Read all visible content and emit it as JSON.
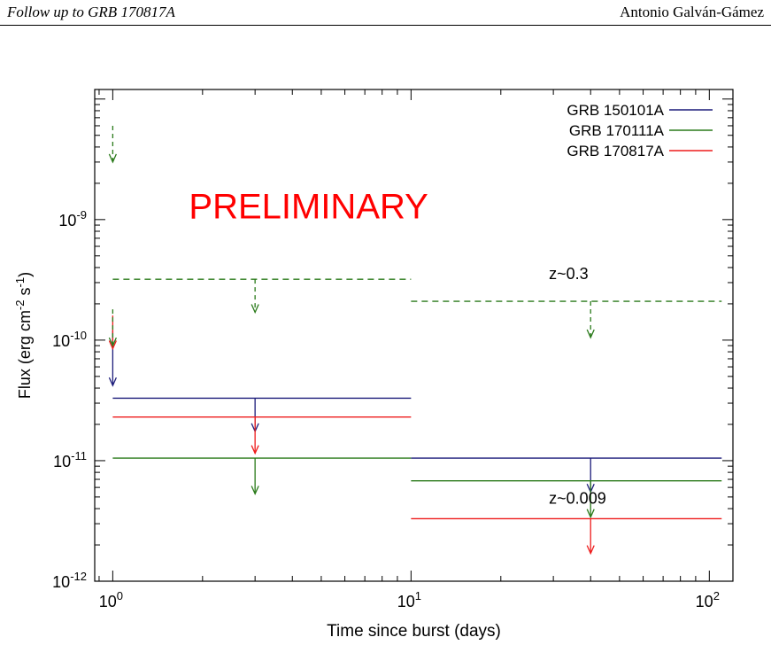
{
  "header": {
    "left_text": "Follow up to GRB 170817A",
    "right_text": "Antonio Galván-Gámez"
  },
  "chart_data": {
    "type": "line",
    "title": "",
    "xlabel": "Time since burst (days)",
    "ylabel": "Flux (erg cm-2 s-1)",
    "x_scale": "log",
    "y_scale": "log",
    "xlim": [
      0.87,
      120
    ],
    "ylim": [
      1e-12,
      1.2e-08
    ],
    "grid": false,
    "legend_position": "top-right",
    "x_ticks": [
      {
        "value": 1,
        "base": "10",
        "exp": "0"
      },
      {
        "value": 10,
        "base": "10",
        "exp": "1"
      },
      {
        "value": 100,
        "base": "10",
        "exp": "2"
      }
    ],
    "y_ticks": [
      {
        "value": 1e-12,
        "base": "10",
        "exp": "-12"
      },
      {
        "value": 1e-11,
        "base": "10",
        "exp": "-11"
      },
      {
        "value": 1e-10,
        "base": "10",
        "exp": "-10"
      },
      {
        "value": 1e-09,
        "base": "10",
        "exp": "-9"
      }
    ],
    "series": [
      {
        "name": "GRB 150101A",
        "color": "#1c1c7a",
        "dashed": false,
        "upper_limits": [
          {
            "x_from": 1,
            "x_to": 1,
            "x_arrow": 1,
            "y": 1.2e-10,
            "y_arrow_end": 4.2e-11
          },
          {
            "x_from": 1,
            "x_to": 10,
            "x_arrow": 3,
            "y": 3.3e-11,
            "y_arrow_end": 1.75e-11
          },
          {
            "x_from": 10,
            "x_to": 110,
            "x_arrow": 40,
            "y": 1.05e-11,
            "y_arrow_end": 5.5e-12
          }
        ]
      },
      {
        "name": "GRB 170111A",
        "color": "#2a7a1a",
        "dashed": false,
        "upper_limits": [
          {
            "x_from": 1,
            "x_to": 10,
            "x_arrow": 3,
            "y": 1.05e-11,
            "y_arrow_end": 5.3e-12
          },
          {
            "x_from": 10,
            "x_to": 110,
            "x_arrow": 40,
            "y": 6.8e-12,
            "y_arrow_end": 3.4e-12
          }
        ]
      },
      {
        "name": "GRB 170817A",
        "color": "#ee1c1c",
        "dashed": false,
        "upper_limits": [
          {
            "x_from": 1,
            "x_to": 1,
            "x_arrow": 1,
            "y": 1.6e-10,
            "y_arrow_end": 8.5e-11
          },
          {
            "x_from": 1,
            "x_to": 10,
            "x_arrow": 3,
            "y": 2.3e-11,
            "y_arrow_end": 1.15e-11
          },
          {
            "x_from": 10,
            "x_to": 110,
            "x_arrow": 40,
            "y": 3.3e-12,
            "y_arrow_end": 1.7e-12
          }
        ]
      },
      {
        "color": "#2a7a1a",
        "dashed": true,
        "upper_limits": [
          {
            "x_from": 1,
            "x_to": 1,
            "x_arrow": 1,
            "y": 6e-09,
            "y_arrow_end": 3e-09
          },
          {
            "x_from": 1,
            "x_to": 1,
            "x_arrow": 1,
            "y": 1.8e-10,
            "y_arrow_end": 9e-11
          },
          {
            "x_from": 1,
            "x_to": 10,
            "x_arrow": 3,
            "y": 3.2e-10,
            "y_arrow_end": 1.7e-10
          },
          {
            "x_from": 10,
            "x_to": 110,
            "x_arrow": 40,
            "y": 2.1e-10,
            "y_arrow_end": 1.05e-10
          }
        ]
      }
    ],
    "annotations": [
      {
        "text": "PRELIMINARY",
        "x": 1.8,
        "y": 1.02e-09,
        "color": "#ff0000",
        "size": "large"
      },
      {
        "text": "z~0.3",
        "x": 29,
        "y": 3.2e-10,
        "color": "#000000",
        "size": "normal"
      },
      {
        "text": "z~0.009",
        "x": 29,
        "y": 4.4e-12,
        "color": "#000000",
        "size": "normal"
      }
    ]
  }
}
